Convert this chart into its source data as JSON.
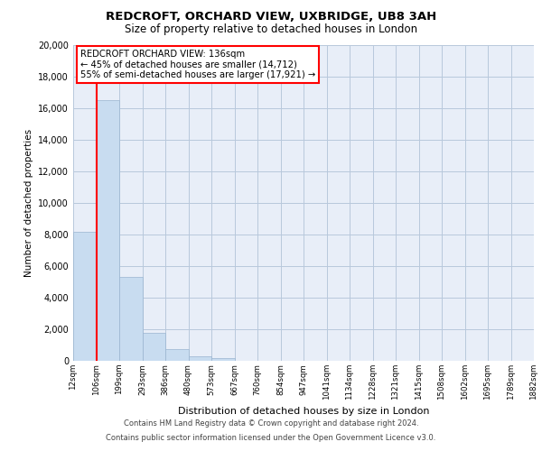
{
  "title": "REDCROFT, ORCHARD VIEW, UXBRIDGE, UB8 3AH",
  "subtitle": "Size of property relative to detached houses in London",
  "xlabel": "Distribution of detached houses by size in London",
  "ylabel": "Number of detached properties",
  "bin_labels": [
    "12sqm",
    "106sqm",
    "199sqm",
    "293sqm",
    "386sqm",
    "480sqm",
    "573sqm",
    "667sqm",
    "760sqm",
    "854sqm",
    "947sqm",
    "1041sqm",
    "1134sqm",
    "1228sqm",
    "1321sqm",
    "1415sqm",
    "1508sqm",
    "1602sqm",
    "1695sqm",
    "1789sqm",
    "1882sqm"
  ],
  "bar_heights": [
    8200,
    16500,
    5300,
    1750,
    750,
    270,
    200,
    0,
    0,
    0,
    0,
    0,
    0,
    0,
    0,
    0,
    0,
    0,
    0,
    0
  ],
  "bar_color": "#c8dcf0",
  "bar_edge_color": "#9ab4d0",
  "grid_color": "#b8c8dc",
  "background_color": "#e8eef8",
  "red_line_x": 1,
  "property_label": "REDCROFT ORCHARD VIEW: 136sqm",
  "annotation_line1": "← 45% of detached houses are smaller (14,712)",
  "annotation_line2": "55% of semi-detached houses are larger (17,921) →",
  "ylim": [
    0,
    20000
  ],
  "yticks": [
    0,
    2000,
    4000,
    6000,
    8000,
    10000,
    12000,
    14000,
    16000,
    18000,
    20000
  ],
  "footer_line1": "Contains HM Land Registry data © Crown copyright and database right 2024.",
  "footer_line2": "Contains public sector information licensed under the Open Government Licence v3.0."
}
